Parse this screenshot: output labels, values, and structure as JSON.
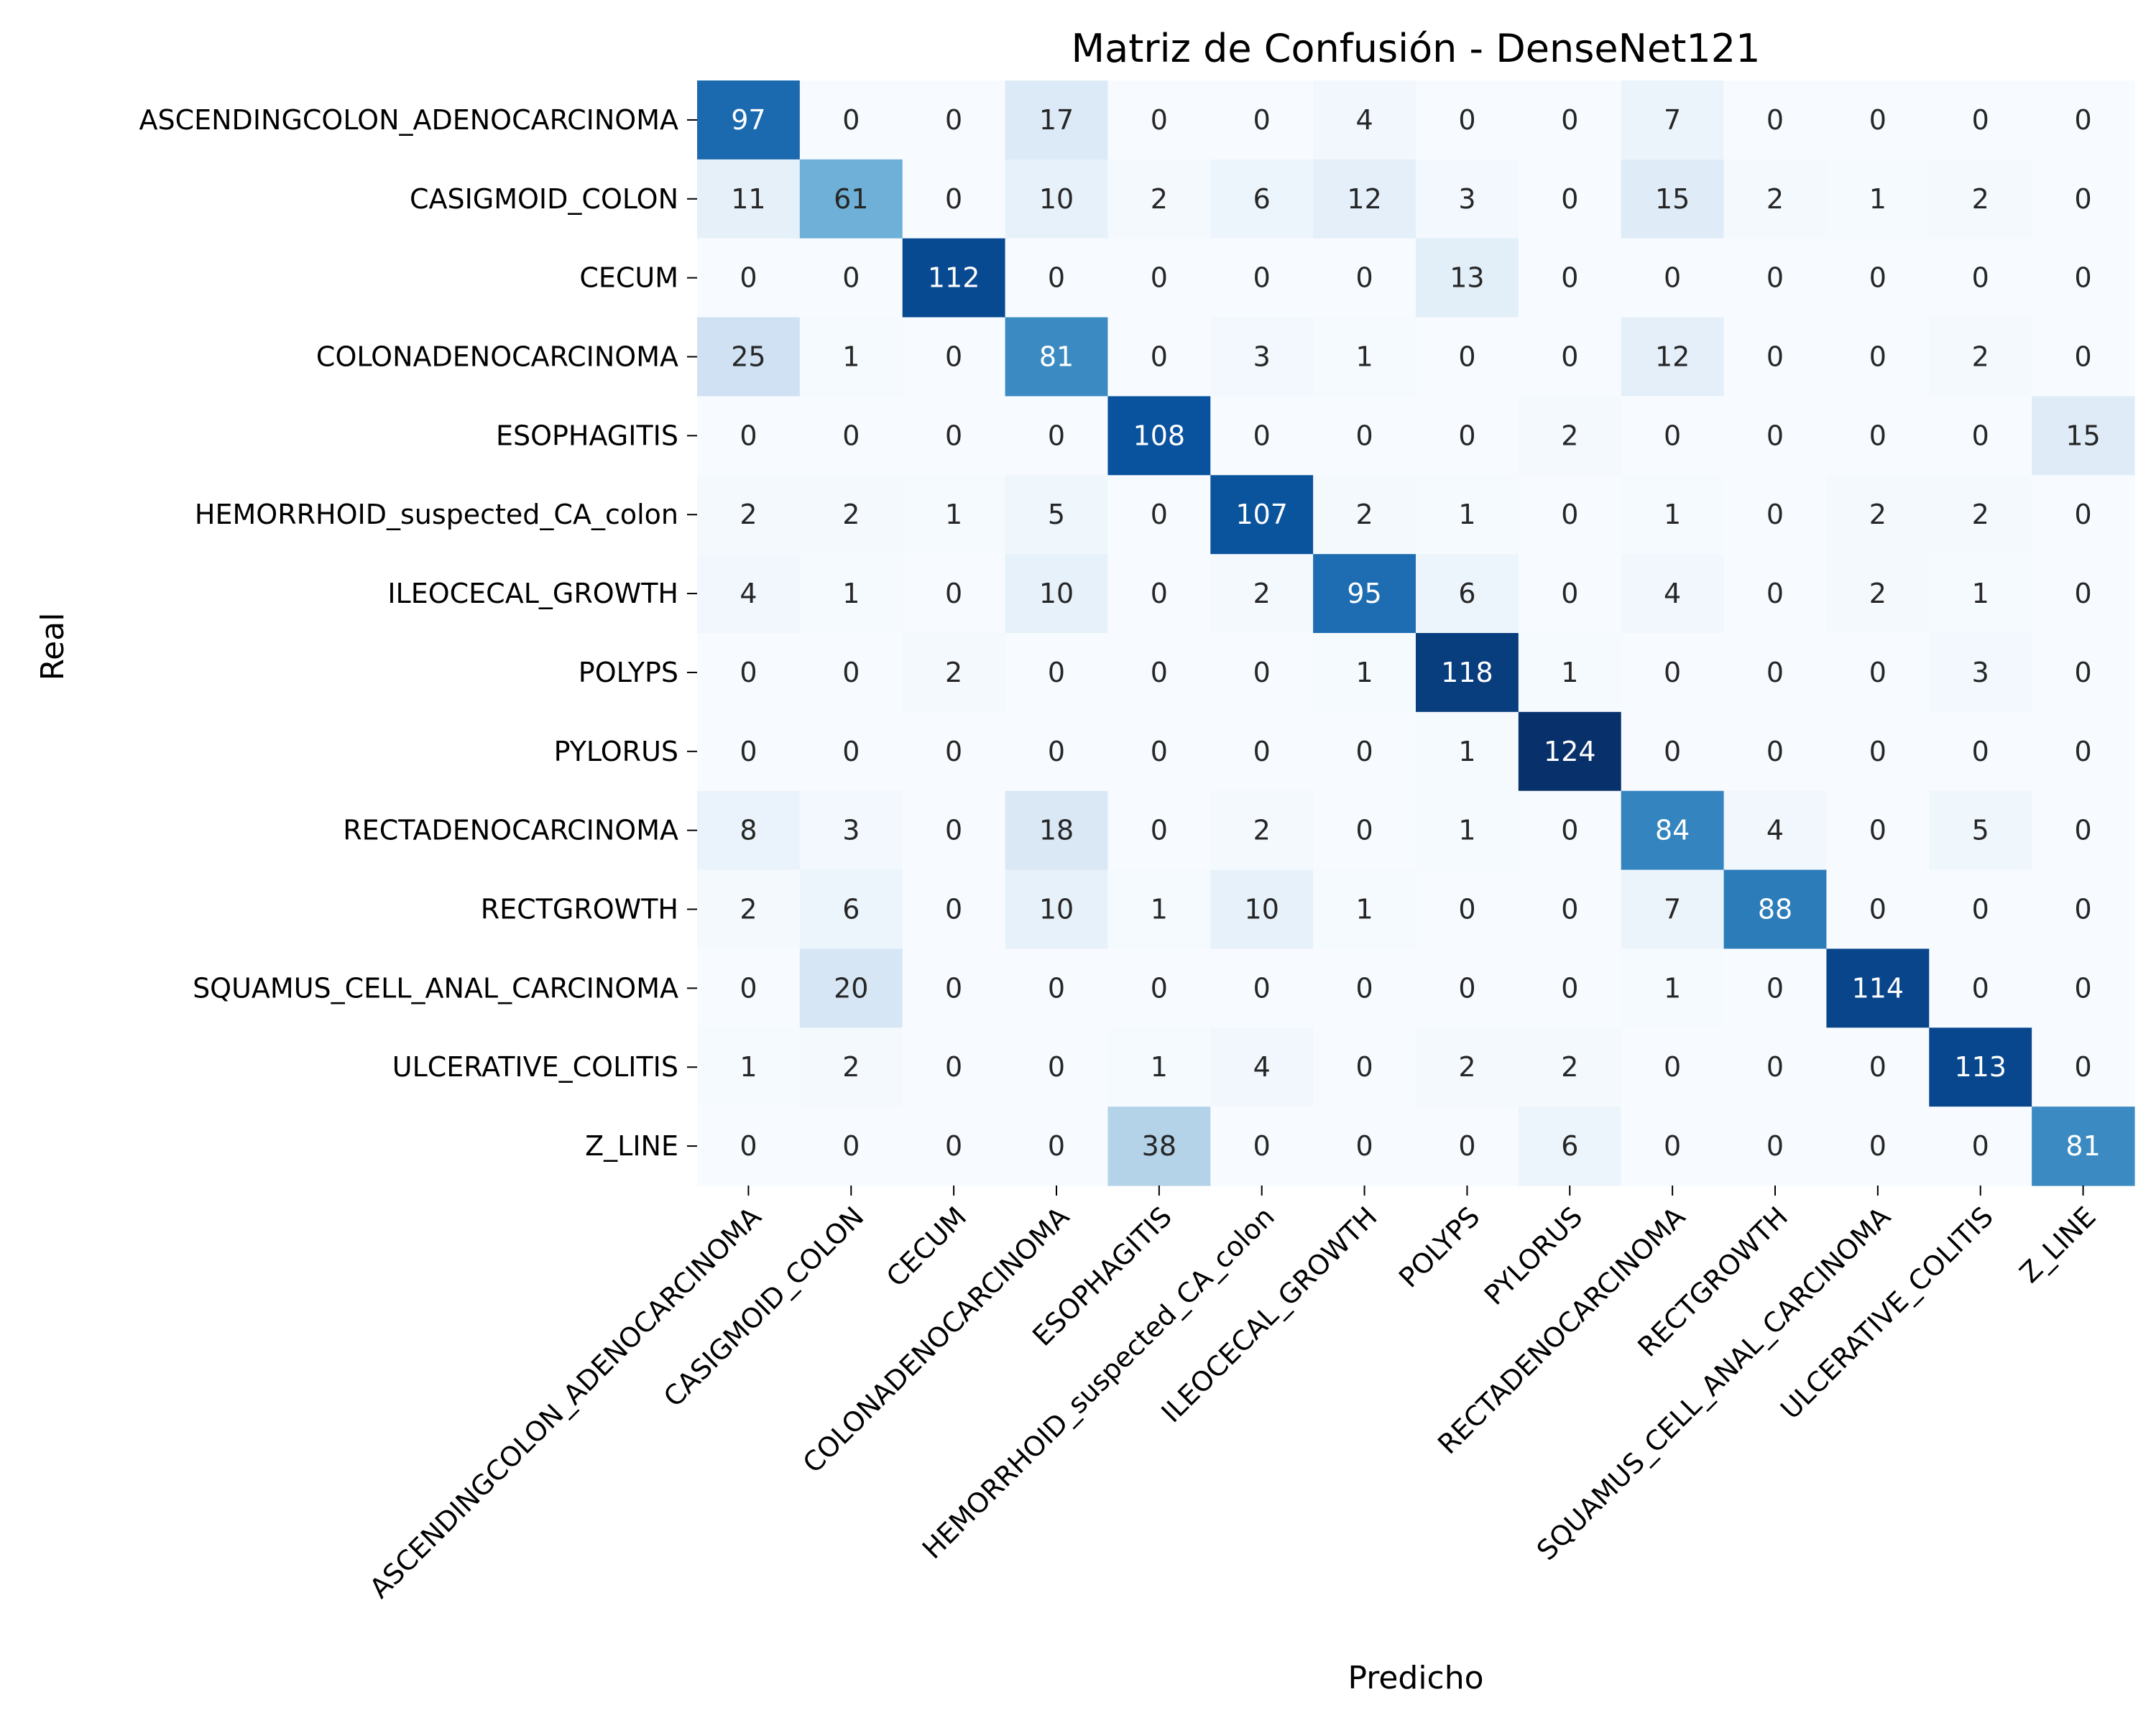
{
  "chart_data": {
    "type": "heatmap",
    "title": "Matriz de Confusión - DenseNet121",
    "xlabel": "Predicho",
    "ylabel": "Real",
    "colormap": "Blues",
    "colorbar": false,
    "vmin": 0,
    "vmax": 124,
    "labels": [
      "ASCENDINGCOLON_ADENOCARCINOMA",
      "CASIGMOID_COLON",
      "CECUM",
      "COLONADENOCARCINOMA",
      "ESOPHAGITIS",
      "HEMORRHOID_suspected_CA_colon",
      "ILEOCECAL_GROWTH",
      "POLYPS",
      "PYLORUS",
      "RECTADENOCARCINOMA",
      "RECTGROWTH",
      "SQUAMUS_CELL_ANAL_CARCINOMA",
      "ULCERATIVE_COLITIS",
      "Z_LINE"
    ],
    "matrix": [
      [
        97,
        0,
        0,
        17,
        0,
        0,
        4,
        0,
        0,
        7,
        0,
        0,
        0,
        0
      ],
      [
        11,
        61,
        0,
        10,
        2,
        6,
        12,
        3,
        0,
        15,
        2,
        1,
        2,
        0
      ],
      [
        0,
        0,
        112,
        0,
        0,
        0,
        0,
        13,
        0,
        0,
        0,
        0,
        0,
        0
      ],
      [
        25,
        1,
        0,
        81,
        0,
        3,
        1,
        0,
        0,
        12,
        0,
        0,
        2,
        0
      ],
      [
        0,
        0,
        0,
        0,
        108,
        0,
        0,
        0,
        2,
        0,
        0,
        0,
        0,
        15
      ],
      [
        2,
        2,
        1,
        5,
        0,
        107,
        2,
        1,
        0,
        1,
        0,
        2,
        2,
        0
      ],
      [
        4,
        1,
        0,
        10,
        0,
        2,
        95,
        6,
        0,
        4,
        0,
        2,
        1,
        0
      ],
      [
        0,
        0,
        2,
        0,
        0,
        0,
        1,
        118,
        1,
        0,
        0,
        0,
        3,
        0
      ],
      [
        0,
        0,
        0,
        0,
        0,
        0,
        0,
        1,
        124,
        0,
        0,
        0,
        0,
        0
      ],
      [
        8,
        3,
        0,
        18,
        0,
        2,
        0,
        1,
        0,
        84,
        4,
        0,
        5,
        0
      ],
      [
        2,
        6,
        0,
        10,
        1,
        10,
        1,
        0,
        0,
        7,
        88,
        0,
        0,
        0
      ],
      [
        0,
        20,
        0,
        0,
        0,
        0,
        0,
        0,
        0,
        1,
        0,
        114,
        0,
        0
      ],
      [
        1,
        2,
        0,
        0,
        1,
        4,
        0,
        2,
        2,
        0,
        0,
        0,
        113,
        0
      ],
      [
        0,
        0,
        0,
        0,
        38,
        0,
        0,
        0,
        6,
        0,
        0,
        0,
        0,
        81
      ]
    ]
  }
}
